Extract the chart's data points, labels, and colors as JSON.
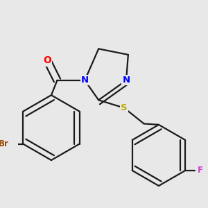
{
  "background_color": "#e8e8e8",
  "bond_color": "#1a1a1a",
  "bond_width": 1.6,
  "atom_colors": {
    "O": "#ff0000",
    "N": "#0000ff",
    "S": "#bbaa00",
    "Br": "#964B00",
    "F": "#cc44cc",
    "C": "#1a1a1a"
  },
  "figsize": [
    3.0,
    3.0
  ],
  "dpi": 100
}
